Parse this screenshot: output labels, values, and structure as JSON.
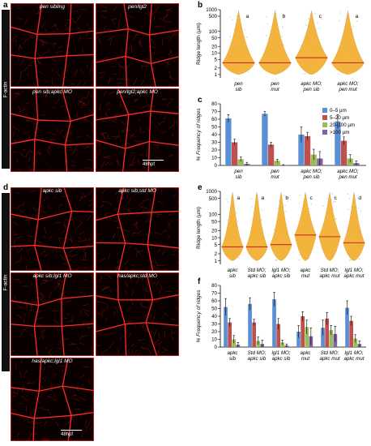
{
  "figure": {
    "panel_labels": [
      "a",
      "b",
      "c",
      "d",
      "e",
      "f"
    ],
    "side_label_top": "F-actin",
    "side_label_bottom": "F-actin",
    "scale_label_a": "48hpf",
    "scale_label_d": "48hpf"
  },
  "panel_a": {
    "images": [
      {
        "caption": "pen sibling"
      },
      {
        "caption": "pen/lgl2"
      },
      {
        "caption": "pen sib;apkc MO"
      },
      {
        "caption": "pen/lgl2;apkc MO"
      }
    ]
  },
  "panel_d": {
    "images": [
      {
        "caption": "apkc sib"
      },
      {
        "caption": "apkc sib;std MO"
      },
      {
        "caption": "apkc sib;lgl1 MO"
      },
      {
        "caption": "has/apkc;std MO"
      },
      {
        "caption": "has/apkc;lgl1 MO"
      }
    ]
  },
  "chart_data": [
    {
      "panel": "b",
      "type": "violin",
      "ylabel": "Ridge length (µm)",
      "y_scale": "log",
      "ylim": [
        0.7,
        1000
      ],
      "yticks": [
        1,
        2,
        5,
        10,
        20,
        50,
        100,
        500,
        1000
      ],
      "categories": [
        [
          "pen",
          "sib"
        ],
        [
          "pen",
          "mut"
        ],
        [
          "apkc MO;",
          "pen sib"
        ],
        [
          "apkc MO;",
          "pen mut"
        ]
      ],
      "letters": [
        "a",
        "b",
        "c",
        "a"
      ],
      "medians": [
        3.5,
        3.5,
        6.0,
        3.5
      ],
      "colors": {
        "violin": "#f2a81d",
        "points": "#9e9e9e",
        "median": "#cc2a2a"
      }
    },
    {
      "panel": "c",
      "type": "bar",
      "ylabel": "% Frequency of ridges",
      "ylim": [
        0,
        80
      ],
      "yticks": [
        0,
        10,
        20,
        30,
        40,
        50,
        60,
        70,
        80
      ],
      "categories": [
        [
          "pen",
          "sib"
        ],
        [
          "pen",
          "mut"
        ],
        [
          "apkc MO;",
          "pen sib"
        ],
        [
          "apkc MO;",
          "pen mut"
        ]
      ],
      "series": [
        {
          "name": "0–5 µm",
          "color": "#5b8fd4",
          "values": [
            61,
            67,
            40,
            57
          ],
          "errors": [
            5,
            3,
            10,
            9
          ]
        },
        {
          "name": "5–20 µm",
          "color": "#c0504d",
          "values": [
            30,
            27,
            38,
            32
          ],
          "errors": [
            4,
            3,
            5,
            5
          ]
        },
        {
          "name": "20–100 µm",
          "color": "#9bbb59",
          "values": [
            8,
            6,
            14,
            9
          ],
          "errors": [
            3,
            2,
            7,
            5
          ]
        },
        {
          "name": ">100 µm",
          "color": "#8064a2",
          "values": [
            2,
            0.5,
            9,
            3
          ],
          "errors": [
            2,
            0.5,
            9,
            3
          ]
        }
      ],
      "legend_position": "right"
    },
    {
      "panel": "e",
      "type": "violin",
      "ylabel": "Ridge length (µm)",
      "y_scale": "log",
      "ylim": [
        0.7,
        1000
      ],
      "yticks": [
        1,
        2,
        5,
        10,
        20,
        50,
        100,
        500,
        1000
      ],
      "categories": [
        [
          "apkc",
          "sib"
        ],
        [
          "Std MO;",
          "apkc sib"
        ],
        [
          "lgl1 MO;",
          "apkc sib"
        ],
        [
          "apkc",
          "mut"
        ],
        [
          "Std MO;",
          "apkc mut"
        ],
        [
          "lgl1 MO;",
          "apkc mut"
        ]
      ],
      "letters": [
        "a",
        "a",
        "b",
        "c",
        "c",
        "d"
      ],
      "medians": [
        4.0,
        4.0,
        5.0,
        13.0,
        11.0,
        6.0
      ],
      "colors": {
        "violin": "#f2a81d",
        "points": "#9e9e9e",
        "median": "#cc2a2a"
      }
    },
    {
      "panel": "f",
      "type": "bar",
      "ylabel": "% Frequency of ridges",
      "ylim": [
        0,
        80
      ],
      "yticks": [
        0,
        10,
        20,
        30,
        40,
        50,
        60,
        70,
        80
      ],
      "categories": [
        [
          "apkc",
          "sib"
        ],
        [
          "Std MO;",
          "apkc sib"
        ],
        [
          "lgl1 MO;",
          "apkc sib"
        ],
        [
          "apkc",
          "mut"
        ],
        [
          "Std MO;",
          "apkc mut"
        ],
        [
          "lgl1 MO;",
          "apkc mut"
        ]
      ],
      "series": [
        {
          "name": "0–5 µm",
          "color": "#5b8fd4",
          "values": [
            52,
            56,
            62,
            20,
            25,
            51
          ],
          "errors": [
            11,
            8,
            9,
            8,
            10,
            9
          ]
        },
        {
          "name": "5–20 µm",
          "color": "#c0504d",
          "values": [
            32,
            32,
            30,
            40,
            37,
            34
          ],
          "errors": [
            5,
            4,
            7,
            6,
            8,
            6
          ]
        },
        {
          "name": "20–100 µm",
          "color": "#9bbb59",
          "values": [
            10,
            8,
            6,
            26,
            22,
            11
          ],
          "errors": [
            5,
            5,
            3,
            9,
            6,
            5
          ]
        },
        {
          "name": ">100 µm",
          "color": "#8064a2",
          "values": [
            3,
            4,
            2,
            14,
            17,
            4
          ],
          "errors": [
            3,
            5,
            2,
            11,
            10,
            4
          ]
        }
      ]
    }
  ]
}
